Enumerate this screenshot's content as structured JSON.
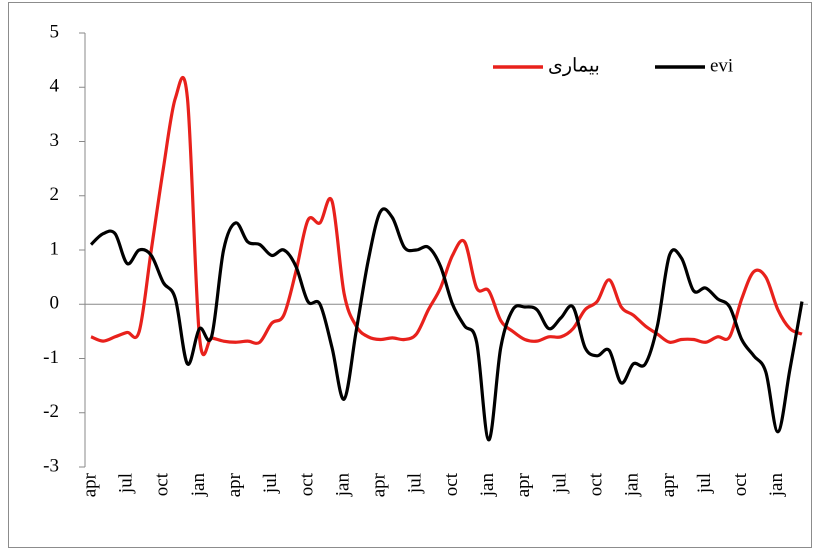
{
  "chart_data": {
    "type": "line",
    "categories": [
      "apr",
      null,
      null,
      "jul",
      null,
      null,
      "oct",
      null,
      null,
      "jan",
      null,
      null,
      "apr",
      null,
      null,
      "jul",
      null,
      null,
      "oct",
      null,
      null,
      "jan",
      null,
      null,
      "apr",
      null,
      null,
      "jul",
      null,
      null,
      "oct",
      null,
      null,
      "jan",
      null,
      null,
      "apr",
      null,
      null,
      "jul",
      null,
      null,
      "oct",
      null,
      null,
      "jan",
      null,
      null,
      "apr",
      null,
      null,
      "jul",
      null,
      null,
      "oct",
      null,
      null,
      "jan",
      null,
      null
    ],
    "series": [
      {
        "name": "بیماری",
        "color": "#e8211c",
        "values": [
          -0.6,
          -0.68,
          -0.6,
          -0.52,
          -0.5,
          1.0,
          2.5,
          3.8,
          3.8,
          -0.6,
          -0.62,
          -0.68,
          -0.7,
          -0.68,
          -0.7,
          -0.35,
          -0.2,
          0.6,
          1.55,
          1.5,
          1.9,
          0.2,
          -0.4,
          -0.6,
          -0.65,
          -0.62,
          -0.65,
          -0.55,
          -0.1,
          0.3,
          0.9,
          1.15,
          0.3,
          0.25,
          -0.3,
          -0.5,
          -0.65,
          -0.68,
          -0.6,
          -0.6,
          -0.45,
          -0.1,
          0.05,
          0.45,
          -0.05,
          -0.2,
          -0.4,
          -0.55,
          -0.7,
          -0.65,
          -0.65,
          -0.7,
          -0.6,
          -0.6,
          0.1,
          0.6,
          0.5,
          -0.1,
          -0.45,
          -0.55
        ]
      },
      {
        "name": "evi",
        "color": "#000000",
        "values": [
          1.1,
          1.3,
          1.3,
          0.75,
          1.0,
          0.9,
          0.4,
          0.1,
          -1.1,
          -0.45,
          -0.6,
          1.0,
          1.5,
          1.15,
          1.1,
          0.9,
          1.0,
          0.7,
          0.05,
          0.0,
          -0.8,
          -1.75,
          -0.5,
          0.8,
          1.7,
          1.6,
          1.05,
          1.0,
          1.05,
          0.7,
          0.0,
          -0.4,
          -0.7,
          -2.5,
          -0.8,
          -0.1,
          -0.05,
          -0.1,
          -0.45,
          -0.25,
          -0.05,
          -0.8,
          -0.95,
          -0.85,
          -1.45,
          -1.1,
          -1.1,
          -0.4,
          0.9,
          0.85,
          0.25,
          0.3,
          0.1,
          -0.05,
          -0.65,
          -0.95,
          -1.25,
          -2.35,
          -1.2,
          0.05
        ]
      }
    ],
    "ylim": [
      -3,
      5
    ],
    "yticks": [
      -3,
      -2,
      -1,
      0,
      1,
      2,
      3,
      4,
      5
    ]
  }
}
